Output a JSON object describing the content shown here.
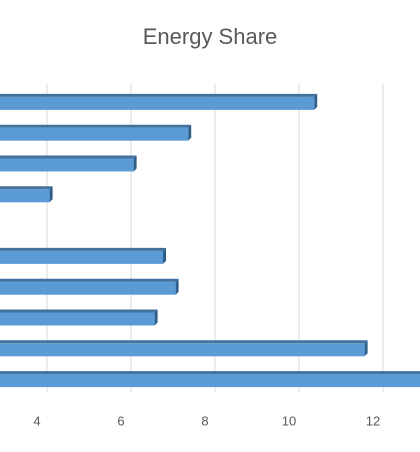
{
  "chart_data": {
    "type": "barh",
    "title": "Energy Share",
    "categories": [
      null,
      null,
      null,
      null,
      null,
      null,
      null,
      null,
      null,
      null
    ],
    "values": [
      10.6,
      7.6,
      6.3,
      4.3,
      null,
      7.0,
      7.3,
      6.8,
      11.8,
      13.2
    ],
    "color": "#5b9bd5",
    "xlim": [
      0,
      14
    ],
    "xticks": [
      4,
      6,
      8,
      10,
      12
    ],
    "grid": true
  }
}
